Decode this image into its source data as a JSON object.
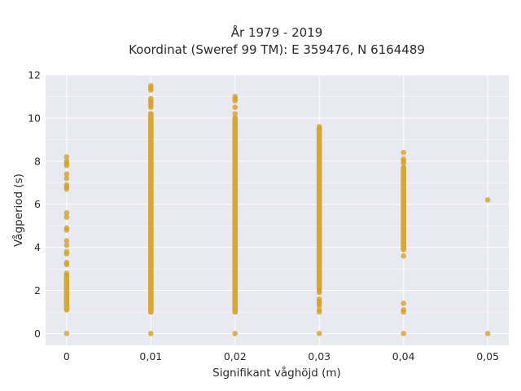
{
  "chart_data": {
    "type": "scatter",
    "title_line1": "År 1979 - 2019",
    "title_line2": "Koordinat (Sweref 99 TM): E 359476, N 6164489",
    "xlabel": "Signifikant våghöjd (m)",
    "ylabel": "Vågperiod (s)",
    "xlim": [
      -0.0025,
      0.0525
    ],
    "ylim": [
      -0.55,
      12.0
    ],
    "x_ticks": [
      {
        "value": 0,
        "label": "0"
      },
      {
        "value": 0.01,
        "label": "0,01"
      },
      {
        "value": 0.02,
        "label": "0,02"
      },
      {
        "value": 0.03,
        "label": "0,03"
      },
      {
        "value": 0.04,
        "label": "0,04"
      },
      {
        "value": 0.05,
        "label": "0,05"
      }
    ],
    "y_ticks": [
      {
        "value": 0,
        "label": "0"
      },
      {
        "value": 2,
        "label": "2"
      },
      {
        "value": 4,
        "label": "4"
      },
      {
        "value": 6,
        "label": "6"
      },
      {
        "value": 8,
        "label": "8"
      },
      {
        "value": 10,
        "label": "10"
      },
      {
        "value": 12,
        "label": "12"
      }
    ],
    "grid": true,
    "background_color": "#e9e9f1",
    "grid_color": "#ffffff",
    "marker_color": "#d4a124",
    "series": [
      {
        "x": 0,
        "ranges": [
          [
            1.1,
            2.7
          ]
        ],
        "points": [
          0,
          2.8,
          3.2,
          3.3,
          3.7,
          3.8,
          4.1,
          4.3,
          4.8,
          4.9,
          5.4,
          5.6,
          6.7,
          6.8,
          6.9,
          7.2,
          7.4,
          7.8,
          7.9,
          8.0,
          8.2
        ]
      },
      {
        "x": 0.01,
        "ranges": [
          [
            1.0,
            10.2
          ]
        ],
        "points": [
          0,
          10.5,
          10.6,
          10.7,
          10.8,
          10.9,
          11.3,
          11.4,
          11.5
        ]
      },
      {
        "x": 0.02,
        "ranges": [
          [
            1.0,
            10.0
          ]
        ],
        "points": [
          0,
          10.2,
          10.5,
          10.8,
          10.9,
          11.0
        ]
      },
      {
        "x": 0.03,
        "ranges": [
          [
            2.1,
            9.5
          ]
        ],
        "points": [
          0,
          1.0,
          1.1,
          1.3,
          1.4,
          1.5,
          1.6,
          1.9,
          2.0,
          9.6
        ]
      },
      {
        "x": 0.04,
        "ranges": [
          [
            3.9,
            7.7
          ]
        ],
        "points": [
          0,
          1.0,
          1.1,
          1.4,
          3.6,
          7.9,
          8.0,
          8.1,
          8.4
        ]
      },
      {
        "x": 0.05,
        "ranges": [],
        "points": [
          0,
          6.2
        ]
      }
    ]
  }
}
